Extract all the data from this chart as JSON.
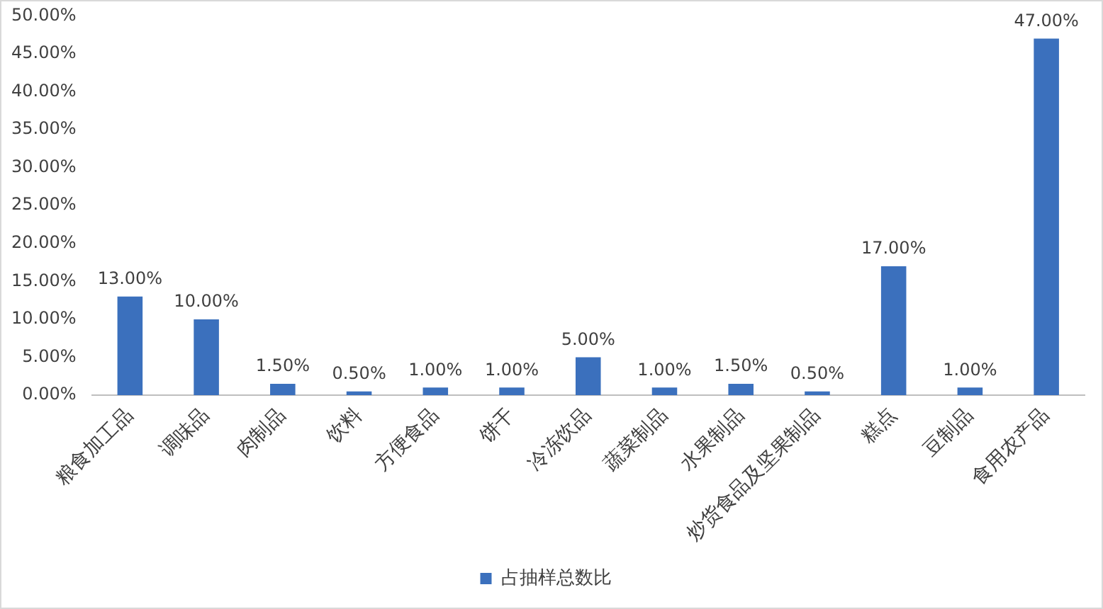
{
  "chart_data": {
    "type": "bar",
    "categories": [
      "粮食加工品",
      "调味品",
      "肉制品",
      "饮料",
      "方便食品",
      "饼干",
      "冷冻饮品",
      "蔬菜制品",
      "水果制品",
      "炒货食品及坚果制品",
      "糕点",
      "豆制品",
      "食用农产品"
    ],
    "series": [
      {
        "name": "占抽样总数比",
        "color": "#3b70bd",
        "values": [
          13,
          10,
          1.5,
          0.5,
          1,
          1,
          5,
          1,
          1.5,
          0.5,
          17,
          1,
          47
        ],
        "value_labels": [
          "13.00%",
          "10.00%",
          "1.50%",
          "0.50%",
          "1.00%",
          "1.00%",
          "5.00%",
          "1.00%",
          "1.50%",
          "0.50%",
          "17.00%",
          "1.00%",
          "47.00%"
        ]
      }
    ],
    "ylim": [
      0,
      50
    ],
    "yticks": [
      {
        "value": 0,
        "label": "0.00%"
      },
      {
        "value": 5,
        "label": "5.00%"
      },
      {
        "value": 10,
        "label": "10.00%"
      },
      {
        "value": 15,
        "label": "15.00%"
      },
      {
        "value": 20,
        "label": "20.00%"
      },
      {
        "value": 25,
        "label": "25.00%"
      },
      {
        "value": 30,
        "label": "30.00%"
      },
      {
        "value": 35,
        "label": "35.00%"
      },
      {
        "value": 40,
        "label": "40.00%"
      },
      {
        "value": 45,
        "label": "45.00%"
      },
      {
        "value": 50,
        "label": "50.00%"
      }
    ],
    "grid": false,
    "legend": "bottom"
  }
}
